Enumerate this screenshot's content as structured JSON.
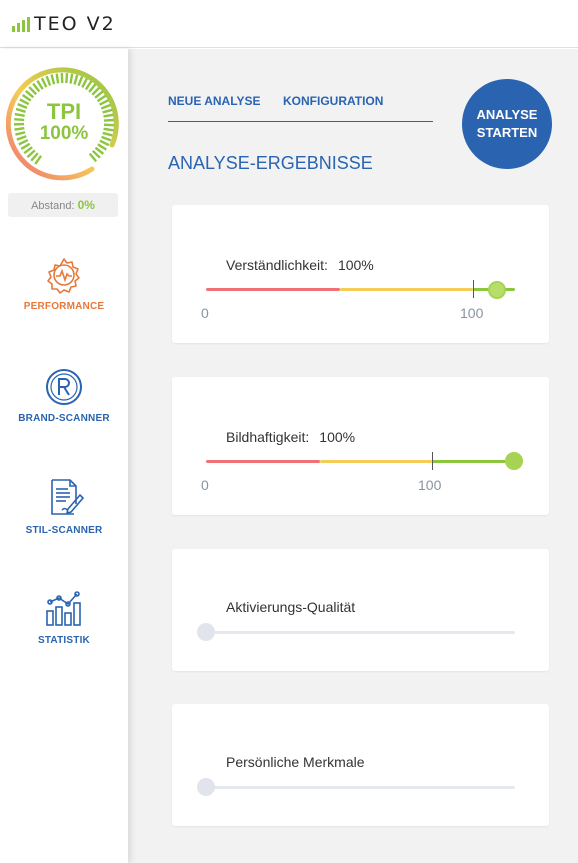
{
  "app": {
    "logo_text": "TEO V2"
  },
  "colors": {
    "brand_blue": "#2a64b0",
    "green": "#8cc63f",
    "orange": "#e8783a",
    "red": "#f07174",
    "yellow": "#f5cc55"
  },
  "sidebar": {
    "tpi_label": "TPI",
    "tpi_value": "100%",
    "tpi_level": 1.0,
    "abstand_label": "Abstand:",
    "abstand_value": "0%",
    "items": [
      {
        "label": "PERFORMANCE",
        "icon": "gear-pulse-icon",
        "active": true
      },
      {
        "label": "BRAND-SCANNER",
        "icon": "registered-icon",
        "active": false
      },
      {
        "label": "STIL-SCANNER",
        "icon": "document-pen-icon",
        "active": false
      },
      {
        "label": "STATISTIK",
        "icon": "bar-chart-icon",
        "active": false
      }
    ]
  },
  "main": {
    "tabs": [
      {
        "label": "NEUE ANALYSE"
      },
      {
        "label": "KONFIGURATION"
      }
    ],
    "start_button": {
      "line1": "ANALYSE",
      "line2": "STARTEN"
    },
    "section_title": "ANALYSE-ERGEBNISSE",
    "cards": [
      {
        "label": "Verständlichkeit:",
        "value": "100%",
        "scale_min": "0",
        "scale_mark": "100",
        "level": 1.0,
        "has_value": true
      },
      {
        "label": "Bildhaftigkeit:",
        "value": "100%",
        "scale_min": "0",
        "scale_mark": "100",
        "level": 1.0,
        "has_value": true
      },
      {
        "label": "Aktivierungs-Qualität",
        "level": 0,
        "has_value": false
      },
      {
        "label": "Persönliche Merkmale",
        "level": 0,
        "has_value": false
      }
    ]
  }
}
